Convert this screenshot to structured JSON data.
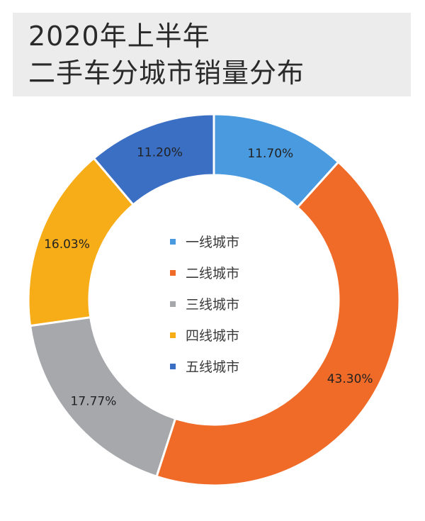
{
  "title": {
    "line1": "2020年上半年",
    "line2": "二手车分城市销量分布"
  },
  "chart_data": {
    "type": "pie",
    "title": "2020年上半年二手车分城市销量分布",
    "legend_position": "center",
    "categories": [
      "一线城市",
      "二线城市",
      "三线城市",
      "四线城市",
      "五线城市"
    ],
    "values": [
      11.7,
      43.3,
      17.77,
      16.03,
      11.2
    ],
    "labels": [
      "11.70%",
      "43.30%",
      "17.77%",
      "16.03%",
      "11.20%"
    ],
    "colors": [
      "#4a9ae0",
      "#f06a28",
      "#a6a8ab",
      "#f7ad18",
      "#3a6fc4"
    ],
    "start_angle_deg": 0,
    "donut": true
  }
}
